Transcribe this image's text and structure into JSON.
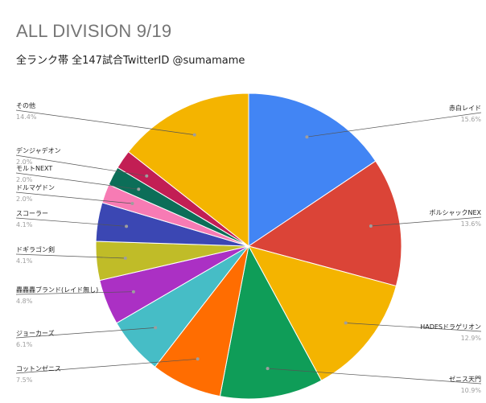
{
  "chart_data": {
    "type": "pie",
    "title": "ALL DIVISION 9/19",
    "subtitle": "全ランク帯 全147試合TwitterID @sumamame",
    "start_angle_deg": 0,
    "direction": "clockwise",
    "slices": [
      {
        "label": "赤白レイド",
        "value": 15.6,
        "pct_label": "15.6%",
        "color": "#4285f4"
      },
      {
        "label": "ボルシャックNEX",
        "value": 13.6,
        "pct_label": "13.6%",
        "color": "#db4437"
      },
      {
        "label": "HADESドラゲリオン",
        "value": 12.9,
        "pct_label": "12.9%",
        "color": "#f4b400"
      },
      {
        "label": "ゼニス天門",
        "value": 10.9,
        "pct_label": "10.9%",
        "color": "#0f9d58"
      },
      {
        "label": "コットンゼニス",
        "value": 7.5,
        "pct_label": "7.5%",
        "color": "#ff6d01"
      },
      {
        "label": "ジョーカーズ",
        "value": 6.1,
        "pct_label": "6.1%",
        "color": "#46bdc6"
      },
      {
        "label": "轟轟轟ブランド(レイド無し)",
        "value": 4.8,
        "pct_label": "4.8%",
        "color": "#ab30c4"
      },
      {
        "label": "ドギラゴン剣",
        "value": 4.1,
        "pct_label": "4.1%",
        "color": "#c0bc28"
      },
      {
        "label": "スコーラー",
        "value": 4.1,
        "pct_label": "4.1%",
        "color": "#3b47b3"
      },
      {
        "label": "ドルマゲドン",
        "value": 2.0,
        "pct_label": "2.0%",
        "color": "#f77bb4"
      },
      {
        "label": "モルトNEXT",
        "value": 2.0,
        "pct_label": "2.0%",
        "color": "#0c6e58"
      },
      {
        "label": "デンジャデオン",
        "value": 2.0,
        "pct_label": "2.0%",
        "color": "#c21e54"
      },
      {
        "label": "その他",
        "value": 14.4,
        "pct_label": "14.4%",
        "color": "#f4b400"
      }
    ]
  }
}
